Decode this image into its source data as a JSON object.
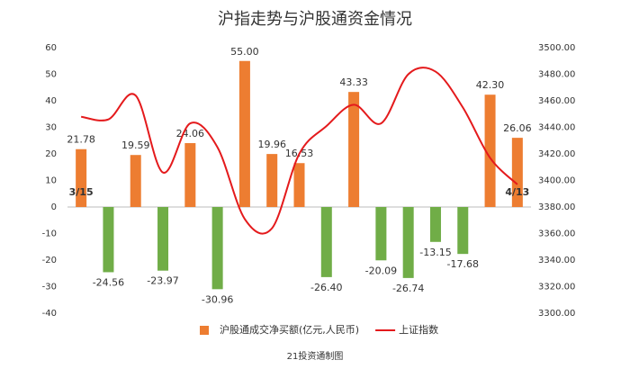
{
  "chart_data": {
    "type": "bar",
    "title": "沪指走势与沪股通资金情况",
    "source": "21投资通制图",
    "categories": [
      "3/15",
      null,
      null,
      null,
      null,
      null,
      null,
      null,
      null,
      null,
      null,
      null,
      null,
      null,
      null,
      null,
      "4/13"
    ],
    "series": [
      {
        "name": "沪股通成交净买额(亿元,人民币)",
        "type": "bar",
        "color": "#ed7d31",
        "negative_color": "#70ad47",
        "values": [
          21.78,
          -24.56,
          19.59,
          -23.97,
          24.06,
          -30.96,
          55,
          19.96,
          16.53,
          -26.4,
          43.33,
          -20.09,
          -26.74,
          -13.15,
          -17.68,
          42.3,
          26.06
        ],
        "value_labels": [
          "21.78",
          "-24.56",
          "19.59",
          "-23.97",
          "24.06",
          "-30.96",
          "55.00",
          "19.96",
          "16.53",
          "-26.40",
          "43.33",
          "-20.09",
          "-26.74",
          "-13.15",
          "-17.68",
          "42.30",
          "26.06"
        ]
      },
      {
        "name": "上证指数",
        "type": "line",
        "axis": "y2",
        "color": "#e41a1c",
        "values": [
          3448,
          3446,
          3464,
          3406,
          3443,
          3425,
          3371,
          3364,
          3420,
          3441,
          3457,
          3443,
          3480,
          3482,
          3455,
          3417,
          3397
        ]
      }
    ],
    "ylim": [
      -40,
      60
    ],
    "yticks": [
      -40,
      -30,
      -20,
      -10,
      0,
      10,
      20,
      30,
      40,
      50,
      60
    ],
    "y2lim": [
      3300,
      3500
    ],
    "y2ticks": [
      {
        "value": 3300,
        "label": "3300.00"
      },
      {
        "value": 3320,
        "label": "3320.00"
      },
      {
        "value": 3340,
        "label": "3340.00"
      },
      {
        "value": 3360,
        "label": "3360.00"
      },
      {
        "value": 3380,
        "label": "3380.00"
      },
      {
        "value": 3400,
        "label": "3400.00"
      },
      {
        "value": 3420,
        "label": "3420.00"
      },
      {
        "value": 3440,
        "label": "3440.00"
      },
      {
        "value": 3460,
        "label": "3460.00"
      },
      {
        "value": 3480,
        "label": "3480.00"
      },
      {
        "value": 3500,
        "label": "3500.00"
      }
    ],
    "grid": false
  }
}
